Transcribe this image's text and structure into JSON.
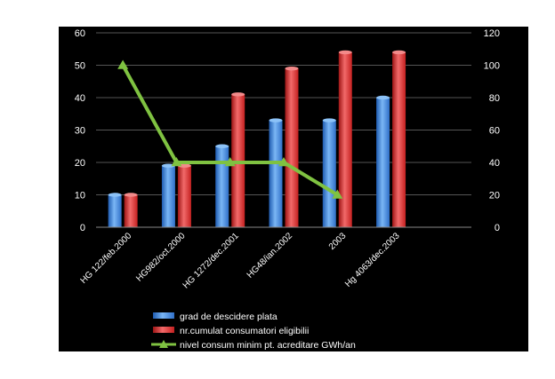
{
  "chart_data": {
    "type": "bar",
    "categories": [
      "HG 122/feb.2000",
      "HG982/oct.2000",
      "HG 1272/dec.2001",
      "HG48/ian.2002",
      "2003",
      "Hg 4063/dec.2003",
      ""
    ],
    "series": [
      {
        "name": "grad de descidere plata",
        "kind": "bar",
        "axis": "left",
        "color": "#4a90e2",
        "values": [
          10,
          19,
          25,
          33,
          33,
          40,
          null
        ]
      },
      {
        "name": "nr.cumulat consumatori eligibilii",
        "kind": "bar",
        "axis": "left",
        "color": "#e03030",
        "values": [
          10,
          19,
          41,
          49,
          54,
          54,
          null
        ]
      },
      {
        "name": "nivel consum minim pt. acreditare GWh/an",
        "kind": "line",
        "axis": "right",
        "color": "#7fc241",
        "values": [
          100,
          40,
          40,
          40,
          20,
          null,
          null
        ]
      }
    ],
    "ylim_left": [
      0,
      60
    ],
    "ylim_right": [
      0,
      120
    ],
    "yticks_left": [
      "0",
      "10",
      "20",
      "30",
      "40",
      "50",
      "60"
    ],
    "yticks_right": [
      "0",
      "20",
      "40",
      "60",
      "80",
      "100",
      "120"
    ],
    "gridlines": true,
    "background": "#000000",
    "legend_position": "bottom"
  }
}
